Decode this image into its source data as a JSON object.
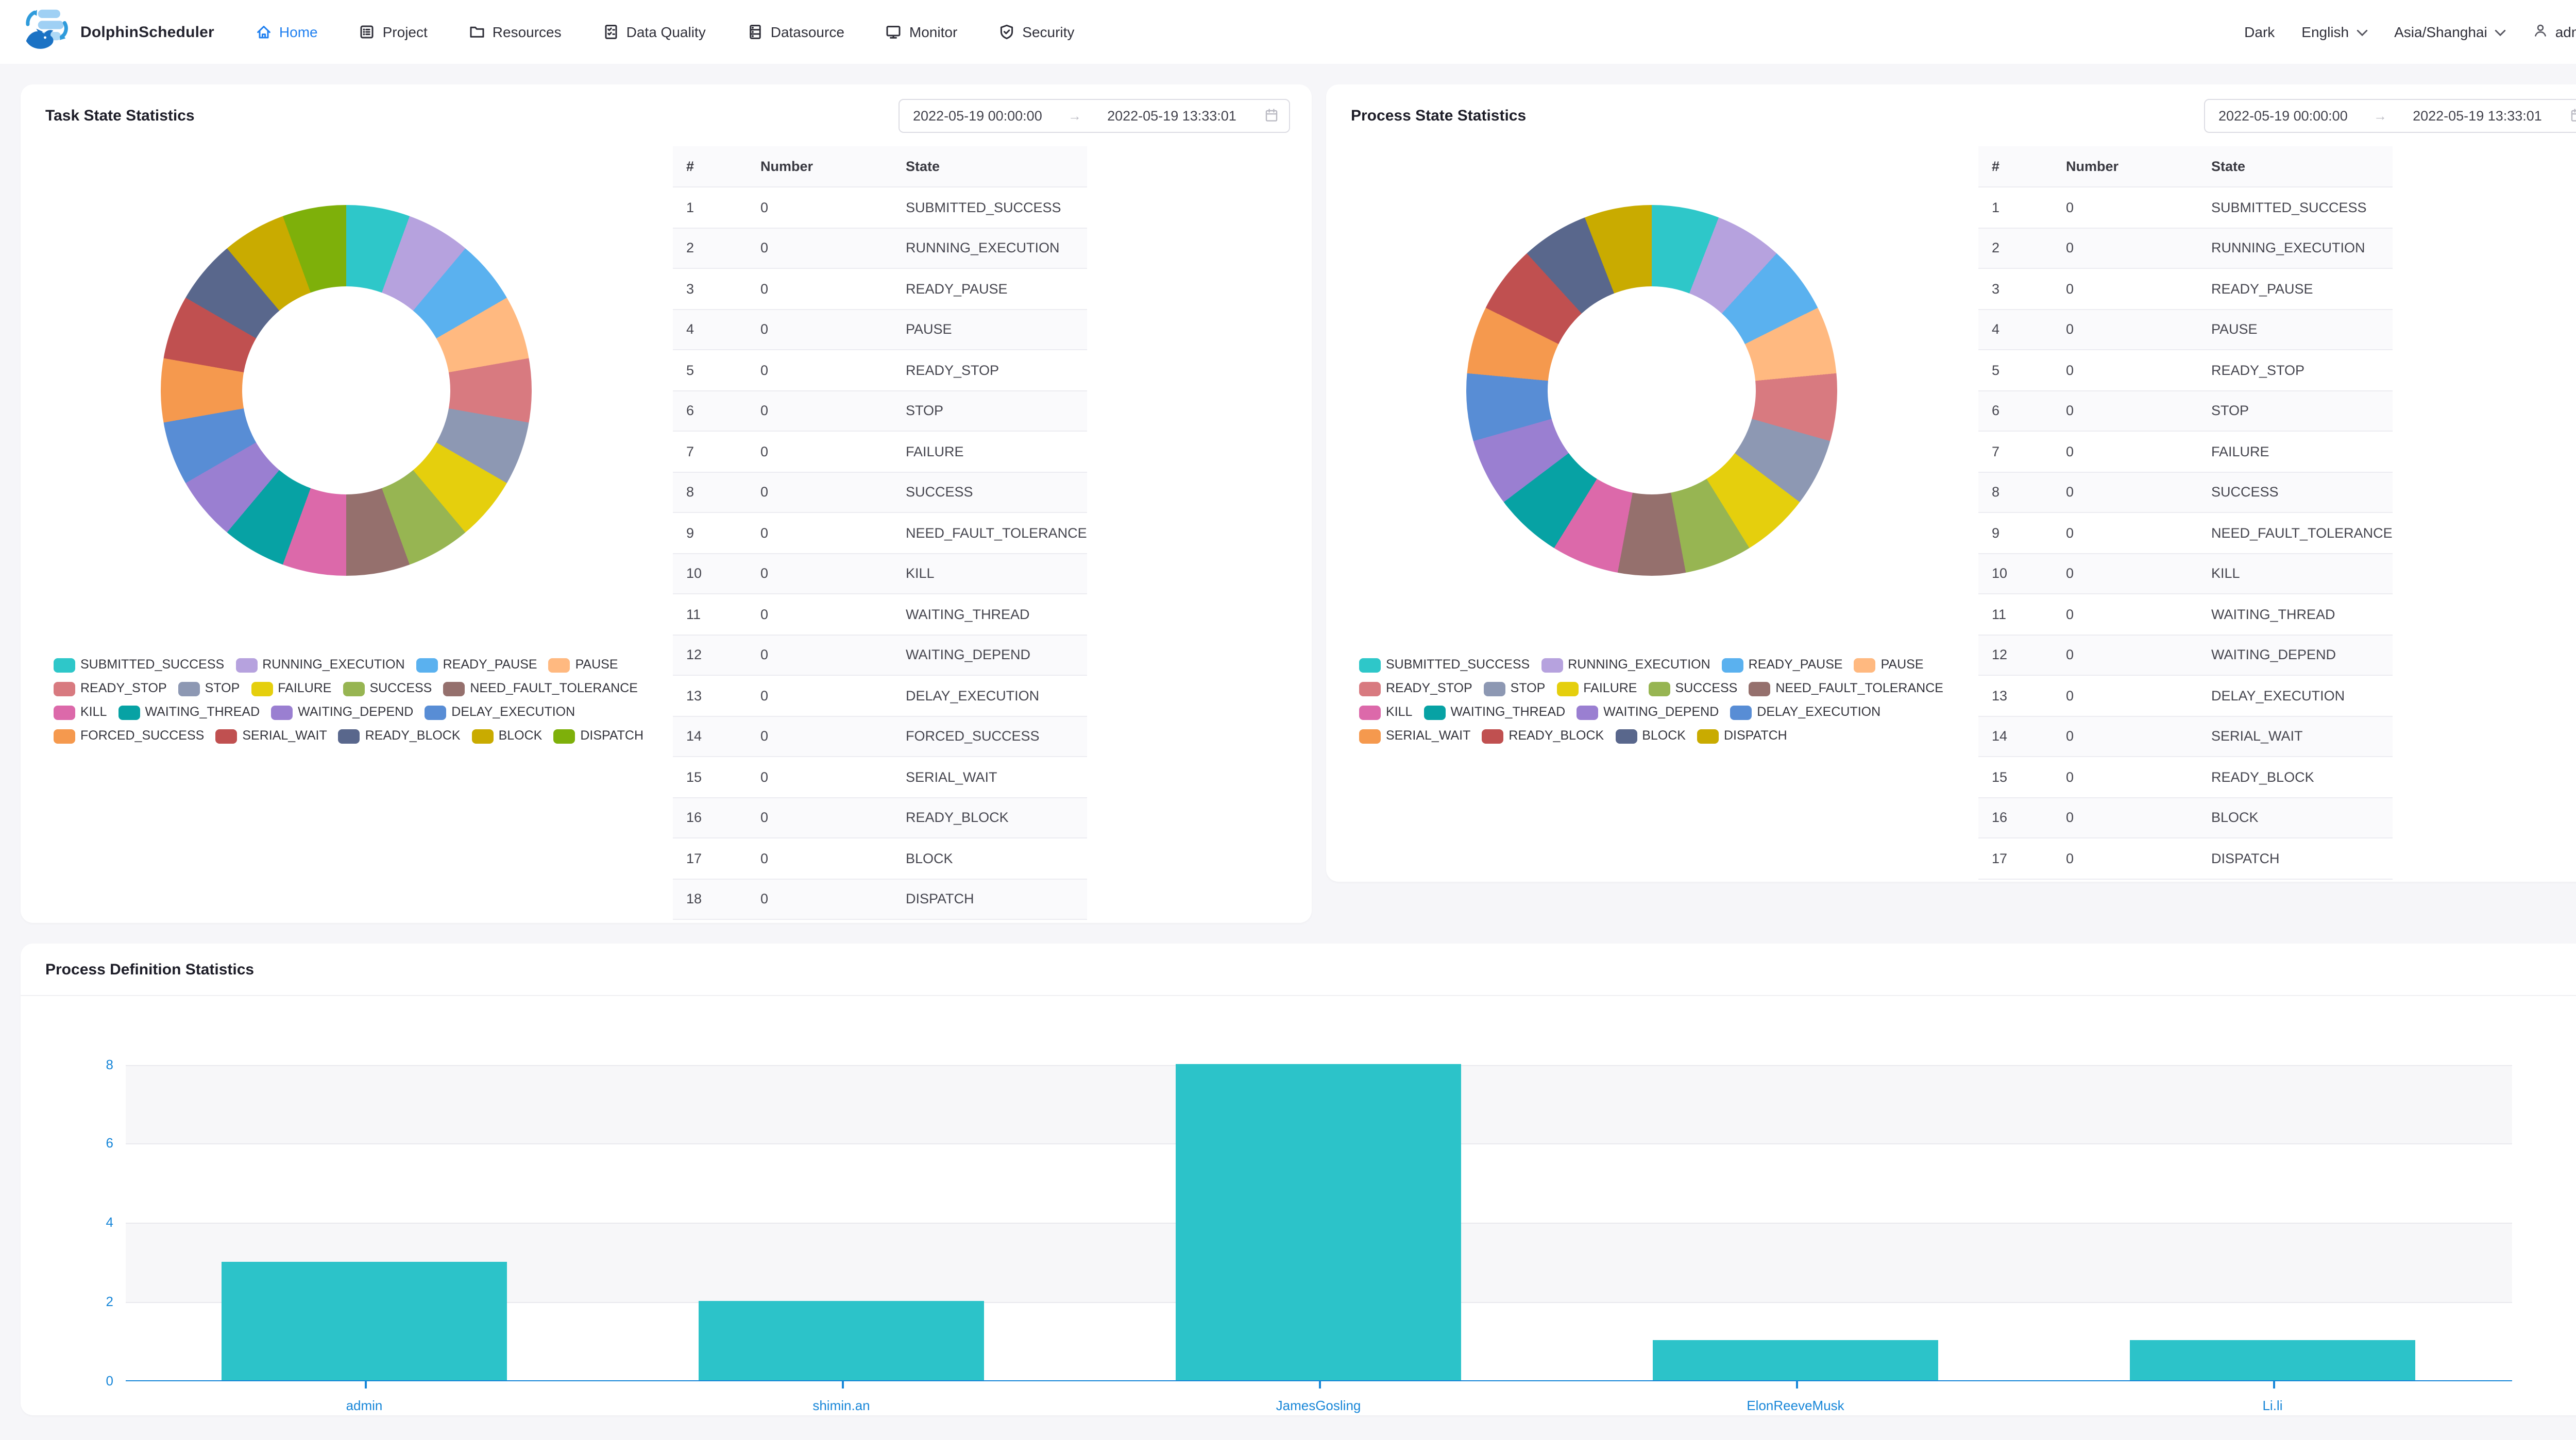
{
  "header": {
    "brand": "DolphinScheduler",
    "nav": [
      {
        "label": "Home",
        "active": true
      },
      {
        "label": "Project",
        "active": false
      },
      {
        "label": "Resources",
        "active": false
      },
      {
        "label": "Data Quality",
        "active": false
      },
      {
        "label": "Datasource",
        "active": false
      },
      {
        "label": "Monitor",
        "active": false
      },
      {
        "label": "Security",
        "active": false
      }
    ],
    "theme_toggle": "Dark",
    "language": "English",
    "timezone": "Asia/Shanghai",
    "user": "admin"
  },
  "task": {
    "title": "Task State Statistics",
    "date_start": "2022-05-19 00:00:00",
    "date_end": "2022-05-19 13:33:01",
    "columns": [
      "#",
      "Number",
      "State"
    ],
    "states": [
      {
        "number": 0,
        "state": "SUBMITTED_SUCCESS",
        "color": "#2ec7c9"
      },
      {
        "number": 0,
        "state": "RUNNING_EXECUTION",
        "color": "#b6a2de"
      },
      {
        "number": 0,
        "state": "READY_PAUSE",
        "color": "#5ab1ef"
      },
      {
        "number": 0,
        "state": "PAUSE",
        "color": "#ffb980"
      },
      {
        "number": 0,
        "state": "READY_STOP",
        "color": "#d87a80"
      },
      {
        "number": 0,
        "state": "STOP",
        "color": "#8d98b3"
      },
      {
        "number": 0,
        "state": "FAILURE",
        "color": "#e5cf0d"
      },
      {
        "number": 0,
        "state": "SUCCESS",
        "color": "#97b552"
      },
      {
        "number": 0,
        "state": "NEED_FAULT_TOLERANCE",
        "color": "#95706d"
      },
      {
        "number": 0,
        "state": "KILL",
        "color": "#dc69aa"
      },
      {
        "number": 0,
        "state": "WAITING_THREAD",
        "color": "#07a2a4"
      },
      {
        "number": 0,
        "state": "WAITING_DEPEND",
        "color": "#9a7fd1"
      },
      {
        "number": 0,
        "state": "DELAY_EXECUTION",
        "color": "#588dd5"
      },
      {
        "number": 0,
        "state": "FORCED_SUCCESS",
        "color": "#f5994e"
      },
      {
        "number": 0,
        "state": "SERIAL_WAIT",
        "color": "#c05050"
      },
      {
        "number": 0,
        "state": "READY_BLOCK",
        "color": "#59678c"
      },
      {
        "number": 0,
        "state": "BLOCK",
        "color": "#c9ab00"
      },
      {
        "number": 0,
        "state": "DISPATCH",
        "color": "#7eb00a"
      }
    ],
    "legend_rows": [
      [
        0,
        1,
        2,
        3
      ],
      [
        4,
        5,
        6,
        7,
        8
      ],
      [
        9,
        10,
        11,
        12
      ],
      [
        13,
        14,
        15,
        16,
        17
      ]
    ]
  },
  "process": {
    "title": "Process State Statistics",
    "date_start": "2022-05-19 00:00:00",
    "date_end": "2022-05-19 13:33:01",
    "columns": [
      "#",
      "Number",
      "State"
    ],
    "states": [
      {
        "number": 0,
        "state": "SUBMITTED_SUCCESS",
        "color": "#2ec7c9"
      },
      {
        "number": 0,
        "state": "RUNNING_EXECUTION",
        "color": "#b6a2de"
      },
      {
        "number": 0,
        "state": "READY_PAUSE",
        "color": "#5ab1ef"
      },
      {
        "number": 0,
        "state": "PAUSE",
        "color": "#ffb980"
      },
      {
        "number": 0,
        "state": "READY_STOP",
        "color": "#d87a80"
      },
      {
        "number": 0,
        "state": "STOP",
        "color": "#8d98b3"
      },
      {
        "number": 0,
        "state": "FAILURE",
        "color": "#e5cf0d"
      },
      {
        "number": 0,
        "state": "SUCCESS",
        "color": "#97b552"
      },
      {
        "number": 0,
        "state": "NEED_FAULT_TOLERANCE",
        "color": "#95706d"
      },
      {
        "number": 0,
        "state": "KILL",
        "color": "#dc69aa"
      },
      {
        "number": 0,
        "state": "WAITING_THREAD",
        "color": "#07a2a4"
      },
      {
        "number": 0,
        "state": "WAITING_DEPEND",
        "color": "#9a7fd1"
      },
      {
        "number": 0,
        "state": "DELAY_EXECUTION",
        "color": "#588dd5"
      },
      {
        "number": 0,
        "state": "SERIAL_WAIT",
        "color": "#f5994e"
      },
      {
        "number": 0,
        "state": "READY_BLOCK",
        "color": "#c05050"
      },
      {
        "number": 0,
        "state": "BLOCK",
        "color": "#59678c"
      },
      {
        "number": 0,
        "state": "DISPATCH",
        "color": "#c9ab00"
      }
    ],
    "legend_rows": [
      [
        0,
        1,
        2,
        3
      ],
      [
        4,
        5,
        6,
        7,
        8
      ],
      [
        9,
        10,
        11,
        12
      ],
      [
        13,
        14,
        15,
        16
      ]
    ]
  },
  "definition": {
    "title": "Process Definition Statistics"
  },
  "chart_data": [
    {
      "type": "pie",
      "variant": "donut",
      "title": "Task State Statistics",
      "labels": [
        "SUBMITTED_SUCCESS",
        "RUNNING_EXECUTION",
        "READY_PAUSE",
        "PAUSE",
        "READY_STOP",
        "STOP",
        "FAILURE",
        "SUCCESS",
        "NEED_FAULT_TOLERANCE",
        "KILL",
        "WAITING_THREAD",
        "WAITING_DEPEND",
        "DELAY_EXECUTION",
        "FORCED_SUCCESS",
        "SERIAL_WAIT",
        "READY_BLOCK",
        "BLOCK",
        "DISPATCH"
      ],
      "values": [
        0,
        0,
        0,
        0,
        0,
        0,
        0,
        0,
        0,
        0,
        0,
        0,
        0,
        0,
        0,
        0,
        0,
        0
      ],
      "colors": [
        "#2ec7c9",
        "#b6a2de",
        "#5ab1ef",
        "#ffb980",
        "#d87a80",
        "#8d98b3",
        "#e5cf0d",
        "#97b552",
        "#95706d",
        "#dc69aa",
        "#07a2a4",
        "#9a7fd1",
        "#588dd5",
        "#f5994e",
        "#c05050",
        "#59678c",
        "#c9ab00",
        "#7eb00a"
      ],
      "legend_position": "bottom-left",
      "note": "all values 0 - rendered as equal slices clockwise from top"
    },
    {
      "type": "pie",
      "variant": "donut",
      "title": "Process State Statistics",
      "labels": [
        "SUBMITTED_SUCCESS",
        "RUNNING_EXECUTION",
        "READY_PAUSE",
        "PAUSE",
        "READY_STOP",
        "STOP",
        "FAILURE",
        "SUCCESS",
        "NEED_FAULT_TOLERANCE",
        "KILL",
        "WAITING_THREAD",
        "WAITING_DEPEND",
        "DELAY_EXECUTION",
        "SERIAL_WAIT",
        "READY_BLOCK",
        "BLOCK",
        "DISPATCH"
      ],
      "values": [
        0,
        0,
        0,
        0,
        0,
        0,
        0,
        0,
        0,
        0,
        0,
        0,
        0,
        0,
        0,
        0,
        0
      ],
      "colors": [
        "#2ec7c9",
        "#b6a2de",
        "#5ab1ef",
        "#ffb980",
        "#d87a80",
        "#8d98b3",
        "#e5cf0d",
        "#97b552",
        "#95706d",
        "#dc69aa",
        "#07a2a4",
        "#9a7fd1",
        "#588dd5",
        "#f5994e",
        "#c05050",
        "#59678c",
        "#c9ab00"
      ],
      "legend_position": "bottom-left",
      "note": "all values 0 - rendered as equal slices clockwise from top"
    },
    {
      "type": "bar",
      "title": "Process Definition Statistics",
      "categories": [
        "admin",
        "shimin.an",
        "JamesGosling",
        "ElonReeveMusk",
        "Li.li"
      ],
      "values": [
        3,
        2,
        8,
        1,
        1
      ],
      "ylim": [
        0,
        8
      ],
      "yticks": [
        8,
        6,
        4,
        2,
        0
      ],
      "xlabel": "",
      "ylabel": "",
      "grid": "horizontal",
      "bar_color": "#2cc3c9",
      "axis_color": "#1786d8",
      "band_colors": [
        "#f7f7f9",
        "#ffffff"
      ]
    }
  ]
}
